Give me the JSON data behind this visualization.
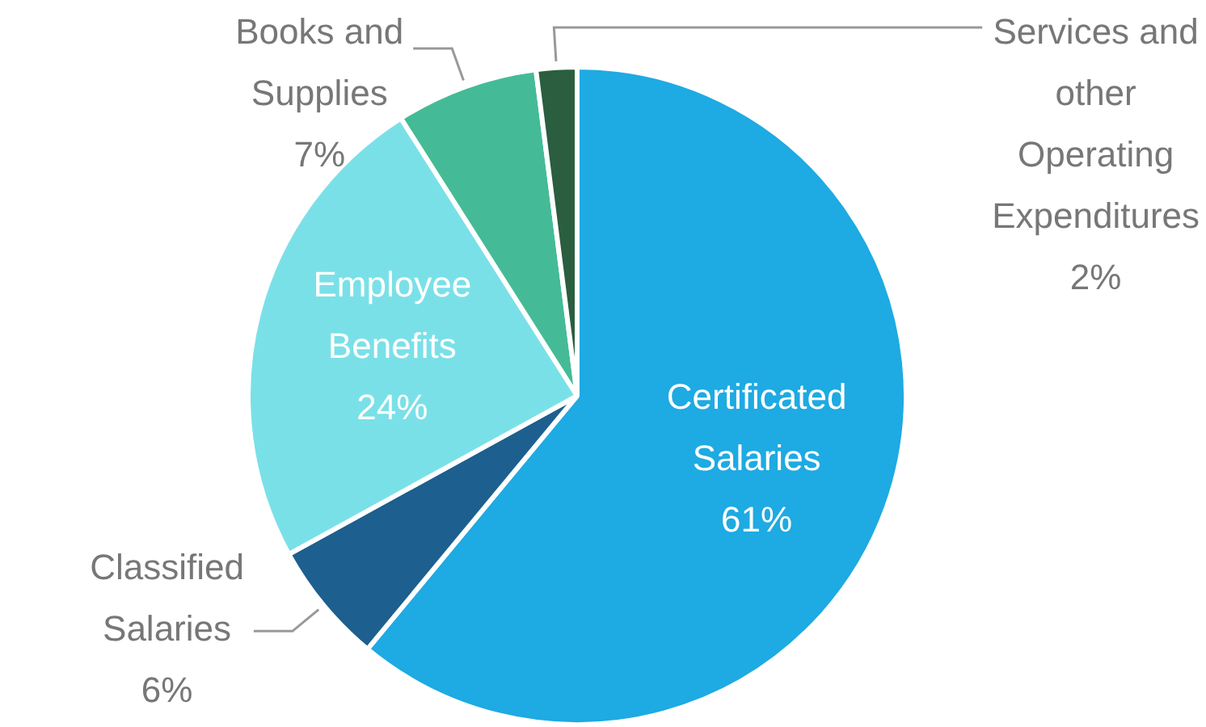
{
  "chart_data": {
    "type": "pie",
    "categories": [
      "Certificated Salaries",
      "Classified Salaries",
      "Employee Benefits",
      "Books and Supplies",
      "Services and other Operating Expenditures"
    ],
    "values": [
      61,
      6,
      24,
      7,
      2
    ],
    "colors": [
      "#1eaae2",
      "#1d5f8e",
      "#7ae0e8",
      "#44bb96",
      "#2a5e3e"
    ],
    "value_labels": [
      "61%",
      "6%",
      "24%",
      "7%",
      "2%"
    ],
    "legend": false
  }
}
